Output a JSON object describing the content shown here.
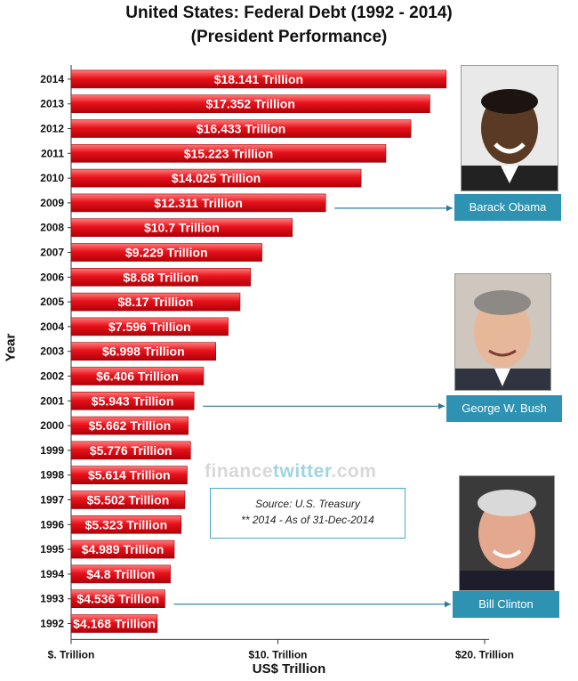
{
  "title": "United States: Federal Debt (1992 - 2014)",
  "subtitle": "(President Performance)",
  "watermark": {
    "part1": "finance",
    "part2": "twitter",
    "part3": ".com"
  },
  "source": {
    "line1": "Source: U.S. Treasury",
    "line2": "** 2014 - As of 31-Dec-2014"
  },
  "presidents": [
    {
      "name": "Barack Obama",
      "year": "2009"
    },
    {
      "name": "George W. Bush",
      "year": "2001"
    },
    {
      "name": "Bill Clinton",
      "year": "1993"
    }
  ],
  "colors": {
    "bar": "#e8121b",
    "bar_light": "#ff6b6b",
    "callout": "#2e93b3",
    "arrow": "#2e7a96"
  },
  "chart_data": {
    "type": "bar",
    "orientation": "horizontal",
    "title": "United States: Federal Debt (1992 - 2014)",
    "subtitle": "(President Performance)",
    "xlabel": "US$ Trillion",
    "ylabel": "Year",
    "xlim": [
      0,
      20
    ],
    "xticks": [
      {
        "value": 0,
        "label": "$. Trillion"
      },
      {
        "value": 10,
        "label": "$10. Trillion"
      },
      {
        "value": 20,
        "label": "$20. Trillion"
      }
    ],
    "categories": [
      "2014",
      "2013",
      "2012",
      "2011",
      "2010",
      "2009",
      "2008",
      "2007",
      "2006",
      "2005",
      "2004",
      "2003",
      "2002",
      "2001",
      "2000",
      "1999",
      "1998",
      "1997",
      "1996",
      "1995",
      "1994",
      "1993",
      "1992"
    ],
    "values": [
      18.141,
      17.352,
      16.433,
      15.223,
      14.025,
      12.311,
      10.7,
      9.229,
      8.68,
      8.17,
      7.596,
      6.998,
      6.406,
      5.943,
      5.662,
      5.776,
      5.614,
      5.502,
      5.323,
      4.989,
      4.8,
      4.536,
      4.168
    ],
    "labels": [
      "$18.141 Trillion",
      "$17.352 Trillion",
      "$16.433 Trillion",
      "$15.223 Trillion",
      "$14.025 Trillion",
      "$12.311 Trillion",
      "$10.7 Trillion",
      "$9.229 Trillion",
      "$8.68 Trillion",
      "$8.17 Trillion",
      "$7.596 Trillion",
      "$6.998 Trillion",
      "$6.406 Trillion",
      "$5.943 Trillion",
      "$5.662 Trillion",
      "$5.776 Trillion",
      "$5.614 Trillion",
      "$5.502 Trillion",
      "$5.323 Trillion",
      "$4.989 Trillion",
      "$4.8 Trillion",
      "$4.536 Trillion",
      "$4.168 Trillion"
    ]
  }
}
